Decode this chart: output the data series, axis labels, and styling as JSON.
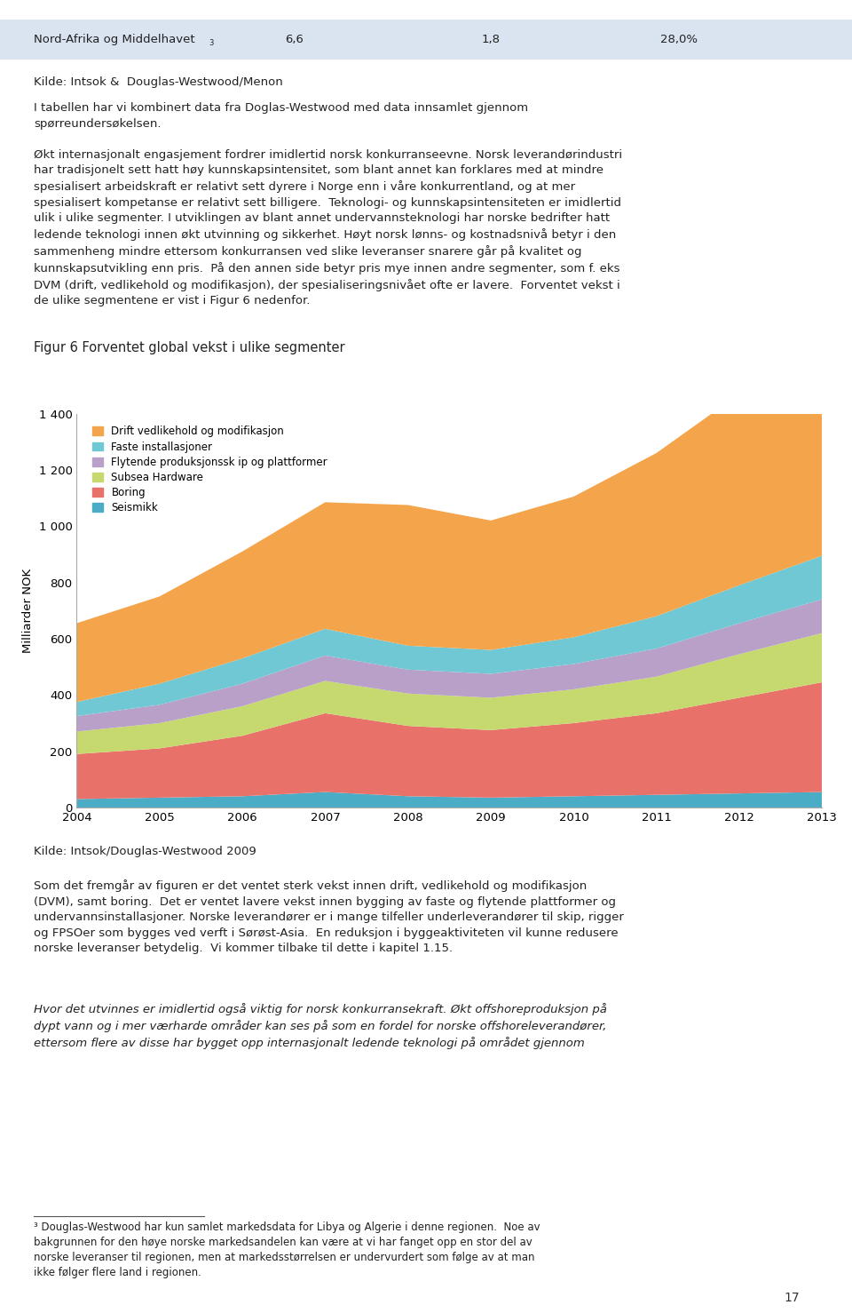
{
  "years": [
    2004,
    2005,
    2006,
    2007,
    2008,
    2009,
    2010,
    2011,
    2012,
    2013
  ],
  "seismikk": [
    30,
    35,
    40,
    55,
    40,
    35,
    40,
    45,
    50,
    55
  ],
  "boring": [
    160,
    175,
    215,
    280,
    250,
    240,
    260,
    290,
    340,
    390
  ],
  "subsea": [
    80,
    90,
    105,
    115,
    115,
    115,
    120,
    130,
    155,
    175
  ],
  "flytende": [
    55,
    65,
    80,
    90,
    85,
    85,
    90,
    100,
    110,
    120
  ],
  "faste": [
    50,
    75,
    90,
    95,
    85,
    85,
    95,
    115,
    135,
    155
  ],
  "drift": [
    280,
    310,
    380,
    450,
    500,
    460,
    500,
    580,
    680,
    750
  ],
  "stack_colors": [
    "#4BACC6",
    "#E8716A",
    "#C6D96F",
    "#B8A0C8",
    "#70C8D4",
    "#F4A44A"
  ],
  "legend_labels": [
    "Drift vedlikehold og modifikasjon",
    "Faste installasjoner",
    "Flytende produksjonssk ip og plattformer",
    "Subsea Hardware",
    "Boring",
    "Seismikk"
  ],
  "legend_colors": [
    "#F4A44A",
    "#70C8D4",
    "#B8A0C8",
    "#C6D96F",
    "#E8716A",
    "#4BACC6"
  ],
  "ylabel": "Milliarder NOK",
  "ytick_labels": [
    "0",
    "200",
    "400",
    "600",
    "800",
    "1 000",
    "1 200",
    "1 400"
  ],
  "figure_title": "Figur 6 Forventet global vekst i ulike segmenter",
  "source_chart": "Kilde: Intsok/Douglas-Westwood 2009",
  "row1_label": "Nord-Afrika og Middelhavet",
  "row1_sup": "3",
  "row1_vals": [
    "6,6",
    "1,8",
    "28,0%"
  ],
  "source_top": "Kilde: Intsok &  Douglas-Westwood/Menon",
  "page_number": "17"
}
